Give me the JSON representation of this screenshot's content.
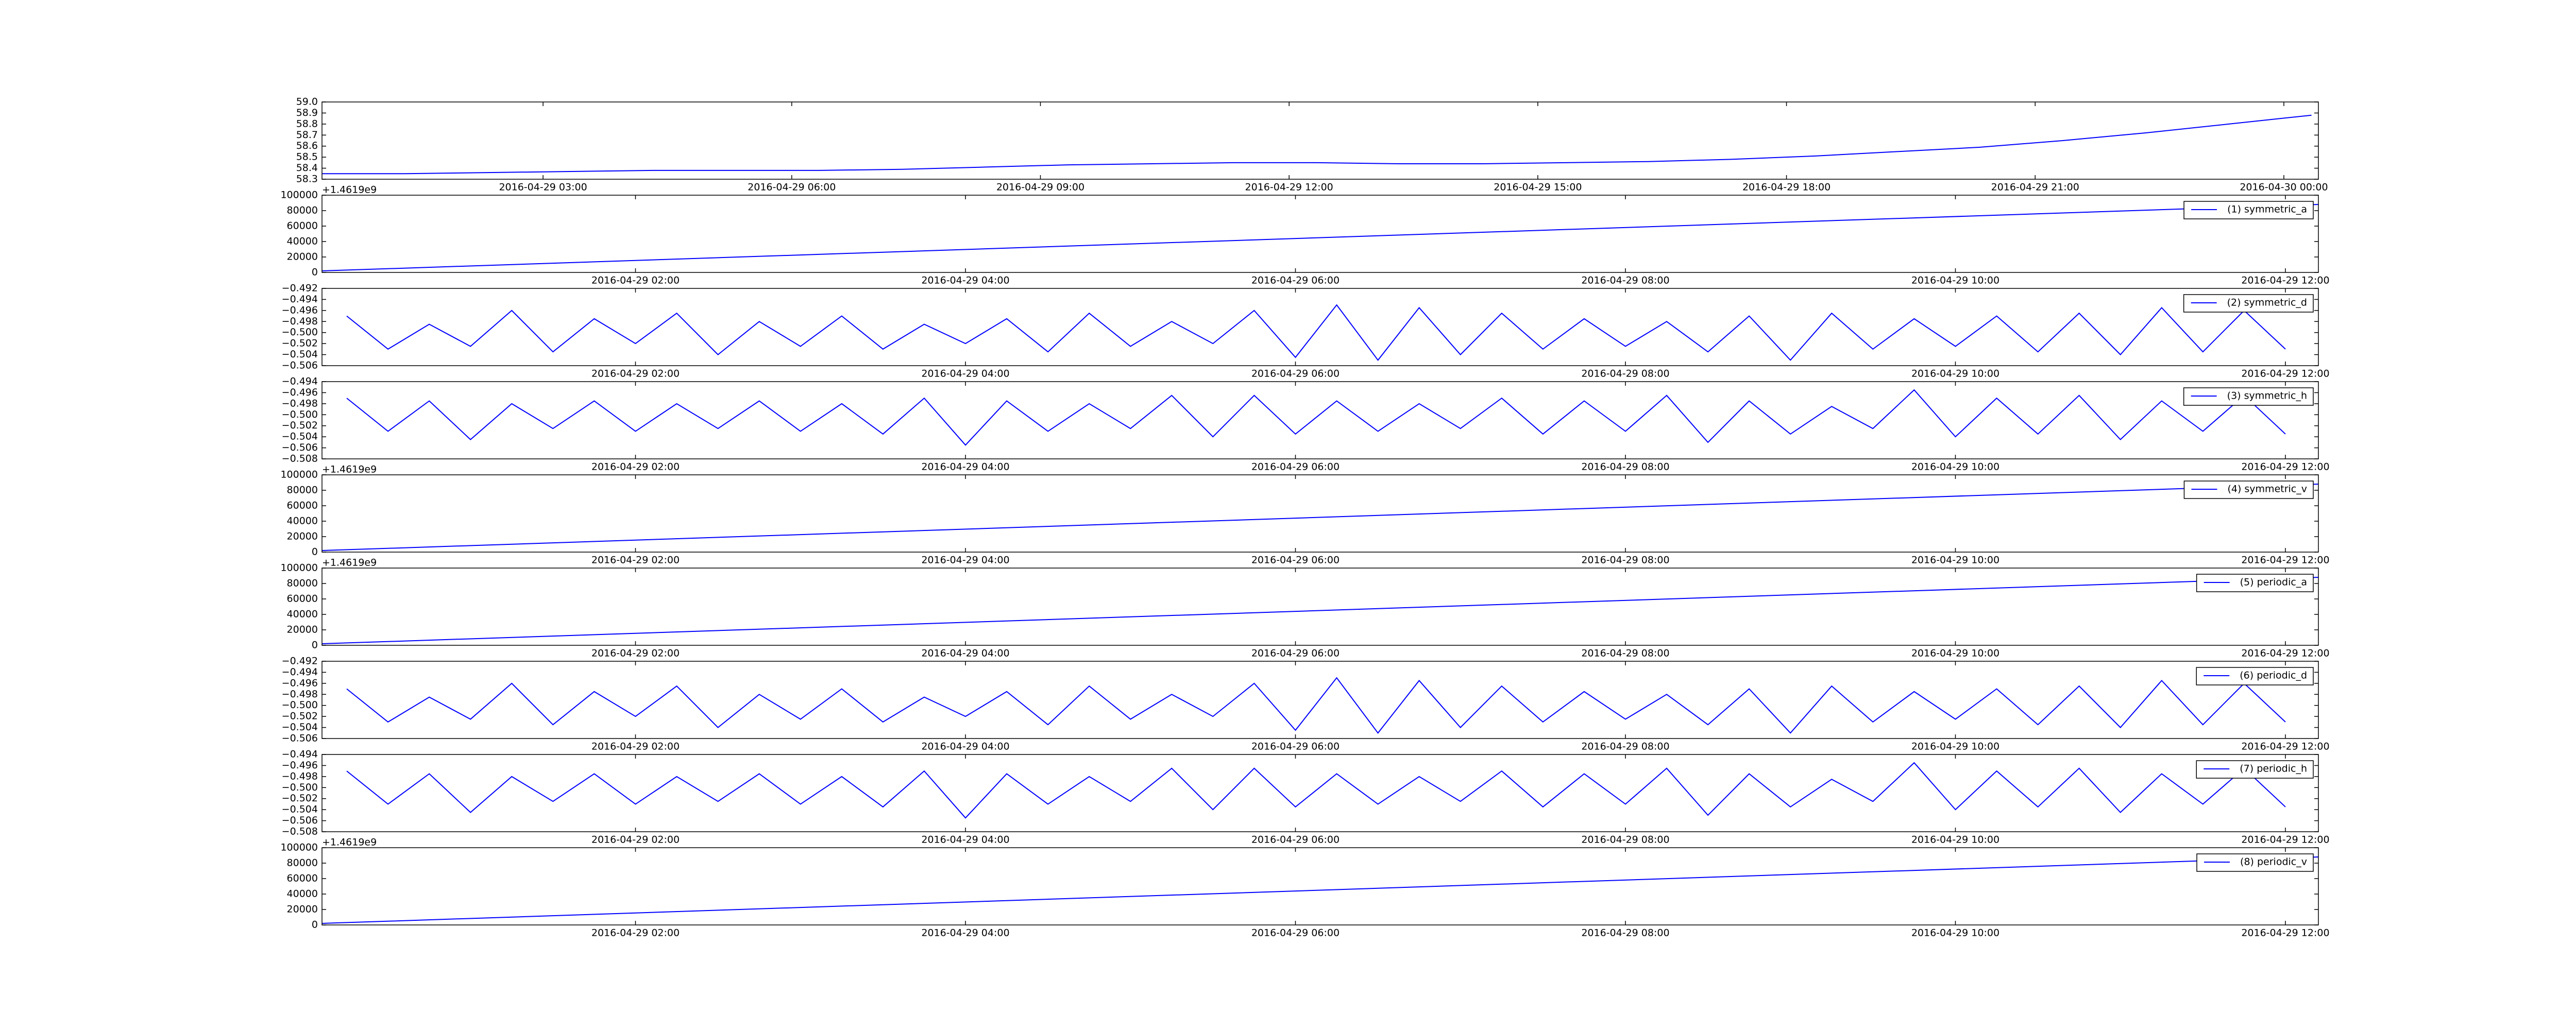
{
  "chart_data": [
    {
      "type": "line",
      "xlim": [
        "2016-04-29 00:20",
        "2016-04-30 00:25"
      ],
      "xticks": [
        "2016-04-29 03:00",
        "2016-04-29 06:00",
        "2016-04-29 09:00",
        "2016-04-29 12:00",
        "2016-04-29 15:00",
        "2016-04-29 18:00",
        "2016-04-29 21:00",
        "2016-04-30 00:00"
      ],
      "ylim": [
        58.3,
        59
      ],
      "yticks": [
        58.3,
        58.4,
        58.5,
        58.6,
        58.7,
        58.8,
        58.9,
        {
          "value": 59,
          "label": "59.0"
        }
      ],
      "x": [
        "2016-04-29 00:20",
        "2016-04-29 01:20",
        "2016-04-29 02:20",
        "2016-04-29 03:20",
        "2016-04-29 04:20",
        "2016-04-29 05:20",
        "2016-04-29 06:20",
        "2016-04-29 07:20",
        "2016-04-29 08:20",
        "2016-04-29 09:20",
        "2016-04-29 10:20",
        "2016-04-29 11:20",
        "2016-04-29 12:20",
        "2016-04-29 13:20",
        "2016-04-29 14:20",
        "2016-04-29 15:20",
        "2016-04-29 16:20",
        "2016-04-29 17:20",
        "2016-04-29 18:20",
        "2016-04-29 19:20",
        "2016-04-29 20:20",
        "2016-04-29 21:20",
        "2016-04-29 22:20",
        "2016-04-29 23:20",
        "2016-04-30 00:20"
      ],
      "series": [
        {
          "color": "#0000ff",
          "values": [
            58.35,
            58.35,
            58.36,
            58.37,
            58.38,
            58.38,
            58.38,
            58.39,
            58.41,
            58.43,
            58.44,
            58.45,
            58.45,
            58.44,
            58.44,
            58.45,
            58.46,
            58.48,
            58.51,
            58.55,
            58.59,
            58.65,
            58.72,
            58.8,
            58.88
          ]
        }
      ]
    },
    {
      "type": "line",
      "offset_label": "+1.4619e9",
      "legend": "upper right",
      "xlim": [
        "2016-04-29 00:06",
        "2016-04-29 12:12"
      ],
      "xticks": [
        "2016-04-29 02:00",
        "2016-04-29 04:00",
        "2016-04-29 06:00",
        "2016-04-29 08:00",
        "2016-04-29 10:00",
        "2016-04-29 12:00"
      ],
      "ylim": [
        0,
        100000
      ],
      "yticks": [
        0,
        20000,
        40000,
        60000,
        80000,
        100000
      ],
      "x": [
        "2016-04-29 00:06",
        "2016-04-29 12:12"
      ],
      "series": [
        {
          "name": "(1) symmetric_a",
          "color": "#0000ff",
          "values": [
            2000,
            88000
          ]
        }
      ]
    },
    {
      "type": "line",
      "legend": "upper right",
      "xlim": [
        "2016-04-29 00:06",
        "2016-04-29 12:12"
      ],
      "xticks": [
        "2016-04-29 02:00",
        "2016-04-29 04:00",
        "2016-04-29 06:00",
        "2016-04-29 08:00",
        "2016-04-29 10:00",
        "2016-04-29 12:00"
      ],
      "ylim": [
        -0.506,
        -0.492
      ],
      "yticks": [
        {
          "value": -0.506,
          "label": "−0.506"
        },
        {
          "value": -0.504,
          "label": "−0.504"
        },
        {
          "value": -0.502,
          "label": "−0.502"
        },
        {
          "value": -0.5,
          "label": "−0.500"
        },
        {
          "value": -0.498,
          "label": "−0.498"
        },
        {
          "value": -0.496,
          "label": "−0.496"
        },
        {
          "value": -0.494,
          "label": "−0.494"
        },
        {
          "value": -0.492,
          "label": "−0.492"
        }
      ],
      "x": [
        "2016-04-29 00:15",
        "2016-04-29 00:30",
        "2016-04-29 00:45",
        "2016-04-29 01:00",
        "2016-04-29 01:15",
        "2016-04-29 01:30",
        "2016-04-29 01:45",
        "2016-04-29 02:00",
        "2016-04-29 02:15",
        "2016-04-29 02:30",
        "2016-04-29 02:45",
        "2016-04-29 03:00",
        "2016-04-29 03:15",
        "2016-04-29 03:30",
        "2016-04-29 03:45",
        "2016-04-29 04:00",
        "2016-04-29 04:15",
        "2016-04-29 04:30",
        "2016-04-29 04:45",
        "2016-04-29 05:00",
        "2016-04-29 05:15",
        "2016-04-29 05:30",
        "2016-04-29 05:45",
        "2016-04-29 06:00",
        "2016-04-29 06:15",
        "2016-04-29 06:30",
        "2016-04-29 06:45",
        "2016-04-29 07:00",
        "2016-04-29 07:15",
        "2016-04-29 07:30",
        "2016-04-29 07:45",
        "2016-04-29 08:00",
        "2016-04-29 08:15",
        "2016-04-29 08:30",
        "2016-04-29 08:45",
        "2016-04-29 09:00",
        "2016-04-29 09:15",
        "2016-04-29 09:30",
        "2016-04-29 09:45",
        "2016-04-29 10:00",
        "2016-04-29 10:15",
        "2016-04-29 10:30",
        "2016-04-29 10:45",
        "2016-04-29 11:00",
        "2016-04-29 11:15",
        "2016-04-29 11:30",
        "2016-04-29 11:45",
        "2016-04-29 12:00"
      ],
      "series": [
        {
          "name": "(2) symmetric_d",
          "color": "#0000ff",
          "values": [
            -0.497,
            -0.503,
            -0.4985,
            -0.5025,
            -0.496,
            -0.5035,
            -0.4975,
            -0.502,
            -0.4965,
            -0.504,
            -0.498,
            -0.5025,
            -0.497,
            -0.503,
            -0.4985,
            -0.502,
            -0.4975,
            -0.5035,
            -0.4965,
            -0.5025,
            -0.498,
            -0.502,
            -0.496,
            -0.5045,
            -0.495,
            -0.505,
            -0.4955,
            -0.504,
            -0.4965,
            -0.503,
            -0.4975,
            -0.5025,
            -0.498,
            -0.5035,
            -0.497,
            -0.505,
            -0.4965,
            -0.503,
            -0.4975,
            -0.5025,
            -0.497,
            -0.5035,
            -0.4965,
            -0.504,
            -0.4955,
            -0.5035,
            -0.496,
            -0.503
          ]
        }
      ]
    },
    {
      "type": "line",
      "legend": "upper right",
      "xlim": [
        "2016-04-29 00:06",
        "2016-04-29 12:12"
      ],
      "xticks": [
        "2016-04-29 02:00",
        "2016-04-29 04:00",
        "2016-04-29 06:00",
        "2016-04-29 08:00",
        "2016-04-29 10:00",
        "2016-04-29 12:00"
      ],
      "ylim": [
        -0.508,
        -0.494
      ],
      "yticks": [
        {
          "value": -0.508,
          "label": "−0.508"
        },
        {
          "value": -0.506,
          "label": "−0.506"
        },
        {
          "value": -0.504,
          "label": "−0.504"
        },
        {
          "value": -0.502,
          "label": "−0.502"
        },
        {
          "value": -0.5,
          "label": "−0.500"
        },
        {
          "value": -0.498,
          "label": "−0.498"
        },
        {
          "value": -0.496,
          "label": "−0.496"
        },
        {
          "value": -0.494,
          "label": "−0.494"
        }
      ],
      "x": [
        "2016-04-29 00:15",
        "2016-04-29 00:30",
        "2016-04-29 00:45",
        "2016-04-29 01:00",
        "2016-04-29 01:15",
        "2016-04-29 01:30",
        "2016-04-29 01:45",
        "2016-04-29 02:00",
        "2016-04-29 02:15",
        "2016-04-29 02:30",
        "2016-04-29 02:45",
        "2016-04-29 03:00",
        "2016-04-29 03:15",
        "2016-04-29 03:30",
        "2016-04-29 03:45",
        "2016-04-29 04:00",
        "2016-04-29 04:15",
        "2016-04-29 04:30",
        "2016-04-29 04:45",
        "2016-04-29 05:00",
        "2016-04-29 05:15",
        "2016-04-29 05:30",
        "2016-04-29 05:45",
        "2016-04-29 06:00",
        "2016-04-29 06:15",
        "2016-04-29 06:30",
        "2016-04-29 06:45",
        "2016-04-29 07:00",
        "2016-04-29 07:15",
        "2016-04-29 07:30",
        "2016-04-29 07:45",
        "2016-04-29 08:00",
        "2016-04-29 08:15",
        "2016-04-29 08:30",
        "2016-04-29 08:45",
        "2016-04-29 09:00",
        "2016-04-29 09:15",
        "2016-04-29 09:30",
        "2016-04-29 09:45",
        "2016-04-29 10:00",
        "2016-04-29 10:15",
        "2016-04-29 10:30",
        "2016-04-29 10:45",
        "2016-04-29 11:00",
        "2016-04-29 11:15",
        "2016-04-29 11:30",
        "2016-04-29 11:45",
        "2016-04-29 12:00"
      ],
      "series": [
        {
          "name": "(3) symmetric_h",
          "color": "#0000ff",
          "values": [
            -0.497,
            -0.503,
            -0.4975,
            -0.5045,
            -0.498,
            -0.5025,
            -0.4975,
            -0.503,
            -0.498,
            -0.5025,
            -0.4975,
            -0.503,
            -0.498,
            -0.5035,
            -0.497,
            -0.5055,
            -0.4975,
            -0.503,
            -0.498,
            -0.5025,
            -0.4965,
            -0.504,
            -0.4965,
            -0.5035,
            -0.4975,
            -0.503,
            -0.498,
            -0.5025,
            -0.497,
            -0.5035,
            -0.4975,
            -0.503,
            -0.4965,
            -0.505,
            -0.4975,
            -0.5035,
            -0.4985,
            -0.5025,
            -0.4955,
            -0.504,
            -0.497,
            -0.5035,
            -0.4965,
            -0.5045,
            -0.4975,
            -0.503,
            -0.4965,
            -0.5035
          ]
        }
      ]
    },
    {
      "type": "line",
      "offset_label": "+1.4619e9",
      "legend": "upper right",
      "xlim": [
        "2016-04-29 00:06",
        "2016-04-29 12:12"
      ],
      "xticks": [
        "2016-04-29 02:00",
        "2016-04-29 04:00",
        "2016-04-29 06:00",
        "2016-04-29 08:00",
        "2016-04-29 10:00",
        "2016-04-29 12:00"
      ],
      "ylim": [
        0,
        100000
      ],
      "yticks": [
        0,
        20000,
        40000,
        60000,
        80000,
        100000
      ],
      "x": [
        "2016-04-29 00:06",
        "2016-04-29 12:12"
      ],
      "series": [
        {
          "name": "(4) symmetric_v",
          "color": "#0000ff",
          "values": [
            2000,
            88000
          ]
        }
      ]
    },
    {
      "type": "line",
      "offset_label": "+1.4619e9",
      "legend": "upper right",
      "xlim": [
        "2016-04-29 00:06",
        "2016-04-29 12:12"
      ],
      "xticks": [
        "2016-04-29 02:00",
        "2016-04-29 04:00",
        "2016-04-29 06:00",
        "2016-04-29 08:00",
        "2016-04-29 10:00",
        "2016-04-29 12:00"
      ],
      "ylim": [
        0,
        100000
      ],
      "yticks": [
        0,
        20000,
        40000,
        60000,
        80000,
        100000
      ],
      "x": [
        "2016-04-29 00:06",
        "2016-04-29 12:12"
      ],
      "series": [
        {
          "name": "(5) periodic_a",
          "color": "#0000ff",
          "values": [
            2000,
            88000
          ]
        }
      ]
    },
    {
      "type": "line",
      "legend": "upper right",
      "xlim": [
        "2016-04-29 00:06",
        "2016-04-29 12:12"
      ],
      "xticks": [
        "2016-04-29 02:00",
        "2016-04-29 04:00",
        "2016-04-29 06:00",
        "2016-04-29 08:00",
        "2016-04-29 10:00",
        "2016-04-29 12:00"
      ],
      "ylim": [
        -0.506,
        -0.492
      ],
      "yticks": [
        {
          "value": -0.506,
          "label": "−0.506"
        },
        {
          "value": -0.504,
          "label": "−0.504"
        },
        {
          "value": -0.502,
          "label": "−0.502"
        },
        {
          "value": -0.5,
          "label": "−0.500"
        },
        {
          "value": -0.498,
          "label": "−0.498"
        },
        {
          "value": -0.496,
          "label": "−0.496"
        },
        {
          "value": -0.494,
          "label": "−0.494"
        },
        {
          "value": -0.492,
          "label": "−0.492"
        }
      ],
      "x": [
        "2016-04-29 00:15",
        "2016-04-29 00:30",
        "2016-04-29 00:45",
        "2016-04-29 01:00",
        "2016-04-29 01:15",
        "2016-04-29 01:30",
        "2016-04-29 01:45",
        "2016-04-29 02:00",
        "2016-04-29 02:15",
        "2016-04-29 02:30",
        "2016-04-29 02:45",
        "2016-04-29 03:00",
        "2016-04-29 03:15",
        "2016-04-29 03:30",
        "2016-04-29 03:45",
        "2016-04-29 04:00",
        "2016-04-29 04:15",
        "2016-04-29 04:30",
        "2016-04-29 04:45",
        "2016-04-29 05:00",
        "2016-04-29 05:15",
        "2016-04-29 05:30",
        "2016-04-29 05:45",
        "2016-04-29 06:00",
        "2016-04-29 06:15",
        "2016-04-29 06:30",
        "2016-04-29 06:45",
        "2016-04-29 07:00",
        "2016-04-29 07:15",
        "2016-04-29 07:30",
        "2016-04-29 07:45",
        "2016-04-29 08:00",
        "2016-04-29 08:15",
        "2016-04-29 08:30",
        "2016-04-29 08:45",
        "2016-04-29 09:00",
        "2016-04-29 09:15",
        "2016-04-29 09:30",
        "2016-04-29 09:45",
        "2016-04-29 10:00",
        "2016-04-29 10:15",
        "2016-04-29 10:30",
        "2016-04-29 10:45",
        "2016-04-29 11:00",
        "2016-04-29 11:15",
        "2016-04-29 11:30",
        "2016-04-29 11:45",
        "2016-04-29 12:00"
      ],
      "series": [
        {
          "name": "(6) periodic_d",
          "color": "#0000ff",
          "values": [
            -0.497,
            -0.503,
            -0.4985,
            -0.5025,
            -0.496,
            -0.5035,
            -0.4975,
            -0.502,
            -0.4965,
            -0.504,
            -0.498,
            -0.5025,
            -0.497,
            -0.503,
            -0.4985,
            -0.502,
            -0.4975,
            -0.5035,
            -0.4965,
            -0.5025,
            -0.498,
            -0.502,
            -0.496,
            -0.5045,
            -0.495,
            -0.505,
            -0.4955,
            -0.504,
            -0.4965,
            -0.503,
            -0.4975,
            -0.5025,
            -0.498,
            -0.5035,
            -0.497,
            -0.505,
            -0.4965,
            -0.503,
            -0.4975,
            -0.5025,
            -0.497,
            -0.5035,
            -0.4965,
            -0.504,
            -0.4955,
            -0.5035,
            -0.496,
            -0.503
          ]
        }
      ]
    },
    {
      "type": "line",
      "legend": "upper right",
      "xlim": [
        "2016-04-29 00:06",
        "2016-04-29 12:12"
      ],
      "xticks": [
        "2016-04-29 02:00",
        "2016-04-29 04:00",
        "2016-04-29 06:00",
        "2016-04-29 08:00",
        "2016-04-29 10:00",
        "2016-04-29 12:00"
      ],
      "ylim": [
        -0.508,
        -0.494
      ],
      "yticks": [
        {
          "value": -0.508,
          "label": "−0.508"
        },
        {
          "value": -0.506,
          "label": "−0.506"
        },
        {
          "value": -0.504,
          "label": "−0.504"
        },
        {
          "value": -0.502,
          "label": "−0.502"
        },
        {
          "value": -0.5,
          "label": "−0.500"
        },
        {
          "value": -0.498,
          "label": "−0.498"
        },
        {
          "value": -0.496,
          "label": "−0.496"
        },
        {
          "value": -0.494,
          "label": "−0.494"
        }
      ],
      "x": [
        "2016-04-29 00:15",
        "2016-04-29 00:30",
        "2016-04-29 00:45",
        "2016-04-29 01:00",
        "2016-04-29 01:15",
        "2016-04-29 01:30",
        "2016-04-29 01:45",
        "2016-04-29 02:00",
        "2016-04-29 02:15",
        "2016-04-29 02:30",
        "2016-04-29 02:45",
        "2016-04-29 03:00",
        "2016-04-29 03:15",
        "2016-04-29 03:30",
        "2016-04-29 03:45",
        "2016-04-29 04:00",
        "2016-04-29 04:15",
        "2016-04-29 04:30",
        "2016-04-29 04:45",
        "2016-04-29 05:00",
        "2016-04-29 05:15",
        "2016-04-29 05:30",
        "2016-04-29 05:45",
        "2016-04-29 06:00",
        "2016-04-29 06:15",
        "2016-04-29 06:30",
        "2016-04-29 06:45",
        "2016-04-29 07:00",
        "2016-04-29 07:15",
        "2016-04-29 07:30",
        "2016-04-29 07:45",
        "2016-04-29 08:00",
        "2016-04-29 08:15",
        "2016-04-29 08:30",
        "2016-04-29 08:45",
        "2016-04-29 09:00",
        "2016-04-29 09:15",
        "2016-04-29 09:30",
        "2016-04-29 09:45",
        "2016-04-29 10:00",
        "2016-04-29 10:15",
        "2016-04-29 10:30",
        "2016-04-29 10:45",
        "2016-04-29 11:00",
        "2016-04-29 11:15",
        "2016-04-29 11:30",
        "2016-04-29 11:45",
        "2016-04-29 12:00"
      ],
      "series": [
        {
          "name": "(7) periodic_h",
          "color": "#0000ff",
          "values": [
            -0.497,
            -0.503,
            -0.4975,
            -0.5045,
            -0.498,
            -0.5025,
            -0.4975,
            -0.503,
            -0.498,
            -0.5025,
            -0.4975,
            -0.503,
            -0.498,
            -0.5035,
            -0.497,
            -0.5055,
            -0.4975,
            -0.503,
            -0.498,
            -0.5025,
            -0.4965,
            -0.504,
            -0.4965,
            -0.5035,
            -0.4975,
            -0.503,
            -0.498,
            -0.5025,
            -0.497,
            -0.5035,
            -0.4975,
            -0.503,
            -0.4965,
            -0.505,
            -0.4975,
            -0.5035,
            -0.4985,
            -0.5025,
            -0.4955,
            -0.504,
            -0.497,
            -0.5035,
            -0.4965,
            -0.5045,
            -0.4975,
            -0.503,
            -0.4965,
            -0.5035
          ]
        }
      ]
    },
    {
      "type": "line",
      "offset_label": "+1.4619e9",
      "legend": "upper right",
      "xlim": [
        "2016-04-29 00:06",
        "2016-04-29 12:12"
      ],
      "xticks": [
        "2016-04-29 02:00",
        "2016-04-29 04:00",
        "2016-04-29 06:00",
        "2016-04-29 08:00",
        "2016-04-29 10:00",
        "2016-04-29 12:00"
      ],
      "ylim": [
        0,
        100000
      ],
      "yticks": [
        0,
        20000,
        40000,
        60000,
        80000,
        100000
      ],
      "x": [
        "2016-04-29 00:06",
        "2016-04-29 12:12"
      ],
      "series": [
        {
          "name": "(8) periodic_v",
          "color": "#0000ff",
          "values": [
            2000,
            88000
          ]
        }
      ]
    }
  ]
}
